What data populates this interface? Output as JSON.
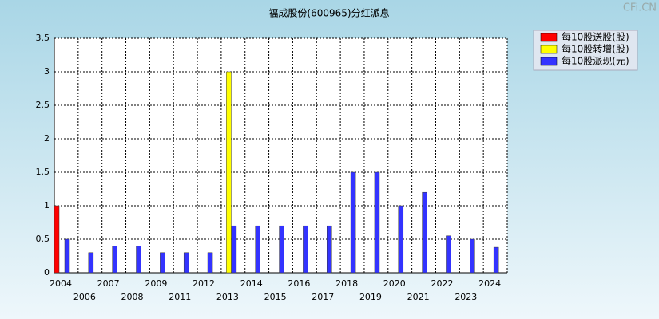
{
  "chart_data": {
    "type": "bar",
    "title": "福成股份(600965)分红派息",
    "watermark": "CFi.CN",
    "categories": [
      "2004",
      "2006",
      "2007",
      "2008",
      "2009",
      "2011",
      "2012",
      "2013",
      "2014",
      "2015",
      "2016",
      "2017",
      "2018",
      "2019",
      "2020",
      "2021",
      "2022",
      "2023",
      "2024"
    ],
    "series": [
      {
        "name": "每10股送股(股)",
        "color": "#ff0000",
        "values": [
          1,
          null,
          null,
          null,
          null,
          null,
          null,
          null,
          null,
          null,
          null,
          null,
          null,
          null,
          null,
          null,
          null,
          null,
          null
        ]
      },
      {
        "name": "每10股转增(股)",
        "color": "#ffff00",
        "values": [
          null,
          null,
          null,
          null,
          null,
          null,
          null,
          3,
          null,
          null,
          null,
          null,
          null,
          null,
          null,
          null,
          null,
          null,
          null
        ]
      },
      {
        "name": "每10股派现(元)",
        "color": "#3333ff",
        "values": [
          0.5,
          0.3,
          0.4,
          0.4,
          0.3,
          0.3,
          0.3,
          0.7,
          0.7,
          0.7,
          0.7,
          0.7,
          1.5,
          1.5,
          1.0,
          1.2,
          0.55,
          0.5,
          0.38
        ]
      }
    ],
    "ylim": [
      0,
      3.5
    ],
    "yticks": [
      0,
      0.5,
      1,
      1.5,
      2,
      2.5,
      3,
      3.5
    ],
    "grid": true,
    "legend": "top-right"
  }
}
